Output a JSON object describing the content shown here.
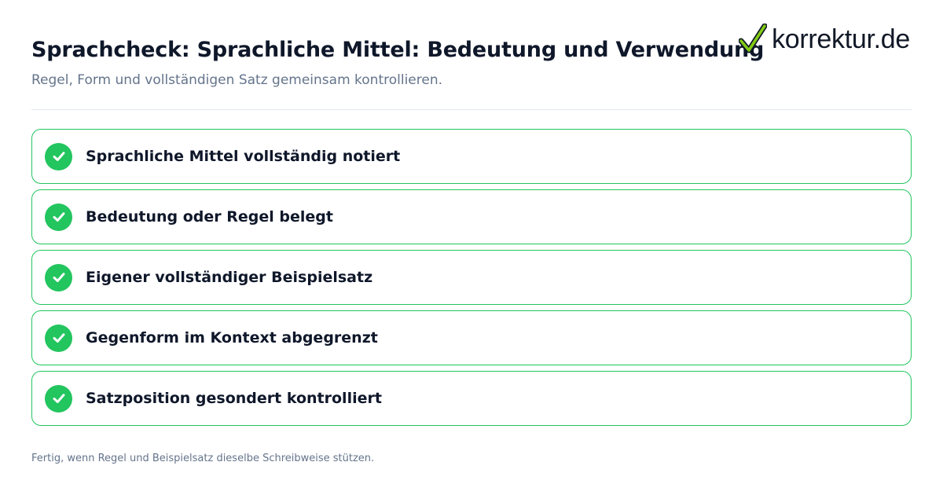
{
  "header": {
    "title": "Sprachcheck: Sprachliche Mittel: Bedeutung und Verwendung",
    "subtitle": "Regel, Form und vollständigen Satz gemeinsam kontrollieren."
  },
  "logo": {
    "text": "korrektur.de",
    "icon": "checkmark-icon",
    "check_color": "#22c55e"
  },
  "checklist": {
    "items": [
      {
        "label": "Sprachliche Mittel vollständig notiert",
        "checked": true
      },
      {
        "label": "Bedeutung oder Regel belegt",
        "checked": true
      },
      {
        "label": "Eigener vollständiger Beispielsatz",
        "checked": true
      },
      {
        "label": "Gegenform im Kontext abgegrenzt",
        "checked": true
      },
      {
        "label": "Satzposition gesondert kontrolliert",
        "checked": true
      }
    ]
  },
  "footer": {
    "note": "Fertig, wenn Regel und Beispielsatz dieselbe Schreibweise stützen."
  },
  "colors": {
    "accent": "#22c55e",
    "title": "#0f172a",
    "muted": "#64748b",
    "divider": "#e2e8f0"
  }
}
